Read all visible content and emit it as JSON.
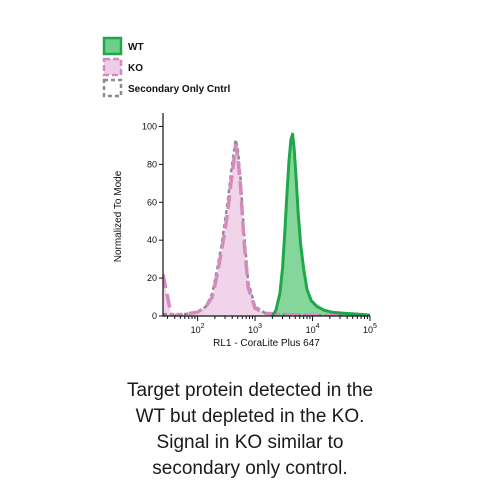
{
  "chart_data": {
    "type": "area",
    "xlabel": "RL1 - CoraLite Plus 647",
    "ylabel": "Normalized To Mode",
    "xscale": "log",
    "xlim": [
      25,
      100000
    ],
    "ylim": [
      0,
      105
    ],
    "x_ticks": [
      {
        "value": 100,
        "base": "10",
        "exp": "2"
      },
      {
        "value": 1000,
        "base": "10",
        "exp": "3"
      },
      {
        "value": 10000,
        "base": "10",
        "exp": "4"
      },
      {
        "value": 100000,
        "base": "10",
        "exp": "5"
      }
    ],
    "y_ticks": [
      {
        "value": 0,
        "label": "0"
      },
      {
        "value": 20,
        "label": "20"
      },
      {
        "value": 40,
        "label": "40"
      },
      {
        "value": 60,
        "label": "60"
      },
      {
        "value": 80,
        "label": "80"
      },
      {
        "value": 100,
        "label": "100"
      }
    ],
    "grid": false,
    "legend_position": "top-left",
    "series": [
      {
        "name": "WT",
        "style": "solid",
        "stroke": "#1fa84a",
        "fill": "#6fcf8a",
        "x": [
          2000,
          2300,
          2700,
          3000,
          3300,
          3600,
          3900,
          4200,
          4500,
          4800,
          5200,
          5600,
          6200,
          7000,
          8000,
          9500,
          12000,
          16000,
          22000,
          35000,
          60000,
          100000
        ],
        "y": [
          0,
          3,
          12,
          25,
          45,
          65,
          82,
          93,
          96,
          88,
          72,
          55,
          38,
          25,
          14,
          8,
          5,
          3,
          2,
          1.5,
          1,
          0.5
        ]
      },
      {
        "name": "KO",
        "style": "dashed",
        "stroke": "#d48cc0",
        "fill": "#f0cde6",
        "x": [
          25,
          35,
          60,
          100,
          140,
          180,
          220,
          260,
          300,
          340,
          380,
          420,
          460,
          500,
          560,
          640,
          760,
          1000,
          1500,
          3000,
          10000,
          100000
        ],
        "y": [
          22,
          0,
          1,
          2,
          5,
          10,
          22,
          34,
          45,
          57,
          70,
          80,
          90,
          84,
          68,
          40,
          15,
          4,
          1.5,
          0.8,
          0.3,
          0.2
        ]
      },
      {
        "name": "Secondary Only Cntrl",
        "style": "dotted",
        "stroke": "#8c8c8c",
        "fill": "none",
        "x": [
          25,
          60,
          100,
          140,
          180,
          220,
          260,
          300,
          340,
          380,
          420,
          460,
          500,
          560,
          640,
          760,
          1000,
          1500,
          3000,
          10000,
          100000
        ],
        "y": [
          1,
          1,
          2,
          5,
          12,
          25,
          37,
          50,
          62,
          75,
          85,
          93,
          88,
          72,
          45,
          18,
          5,
          1.5,
          0.8,
          0.3,
          0.2
        ]
      }
    ]
  },
  "caption": {
    "lines": [
      "Target protein detected in the",
      "WT but depleted in the KO.",
      "Signal in KO similar to",
      "secondary only control."
    ]
  }
}
